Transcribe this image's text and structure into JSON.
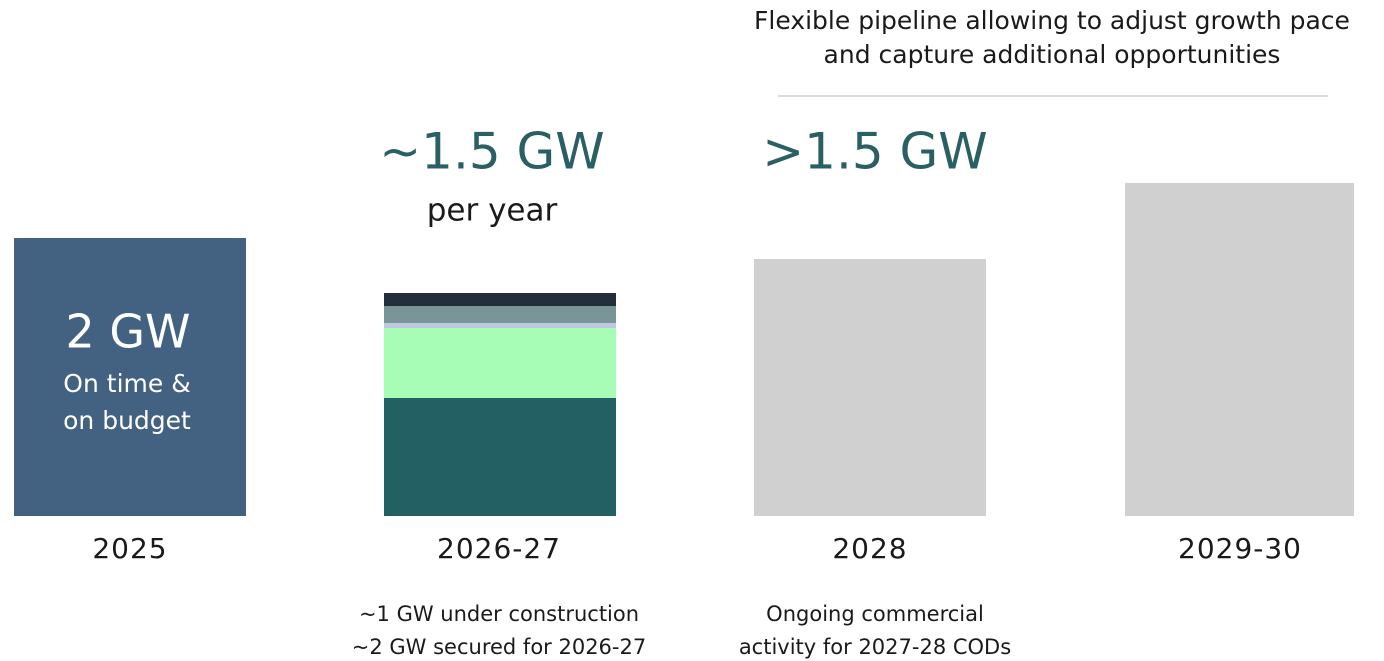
{
  "header": {
    "lines": [
      "Flexible pipeline allowing to adjust growth pace",
      "and capture additional opportunities"
    ]
  },
  "columns": [
    {
      "year": "2025",
      "bar_title": "2 GW",
      "bar_text": [
        "On time &",
        "on budget"
      ]
    },
    {
      "year": "2026-27",
      "headline": "~1.5 GW",
      "subheadline": "per year",
      "notes": [
        "~1 GW under construction",
        "~2 GW secured for 2026-27"
      ]
    },
    {
      "year": "2028",
      "headline": ">1.5 GW",
      "notes": [
        "Ongoing commercial",
        "activity for 2027-28 CODs"
      ]
    },
    {
      "year": "2029-30"
    }
  ]
}
